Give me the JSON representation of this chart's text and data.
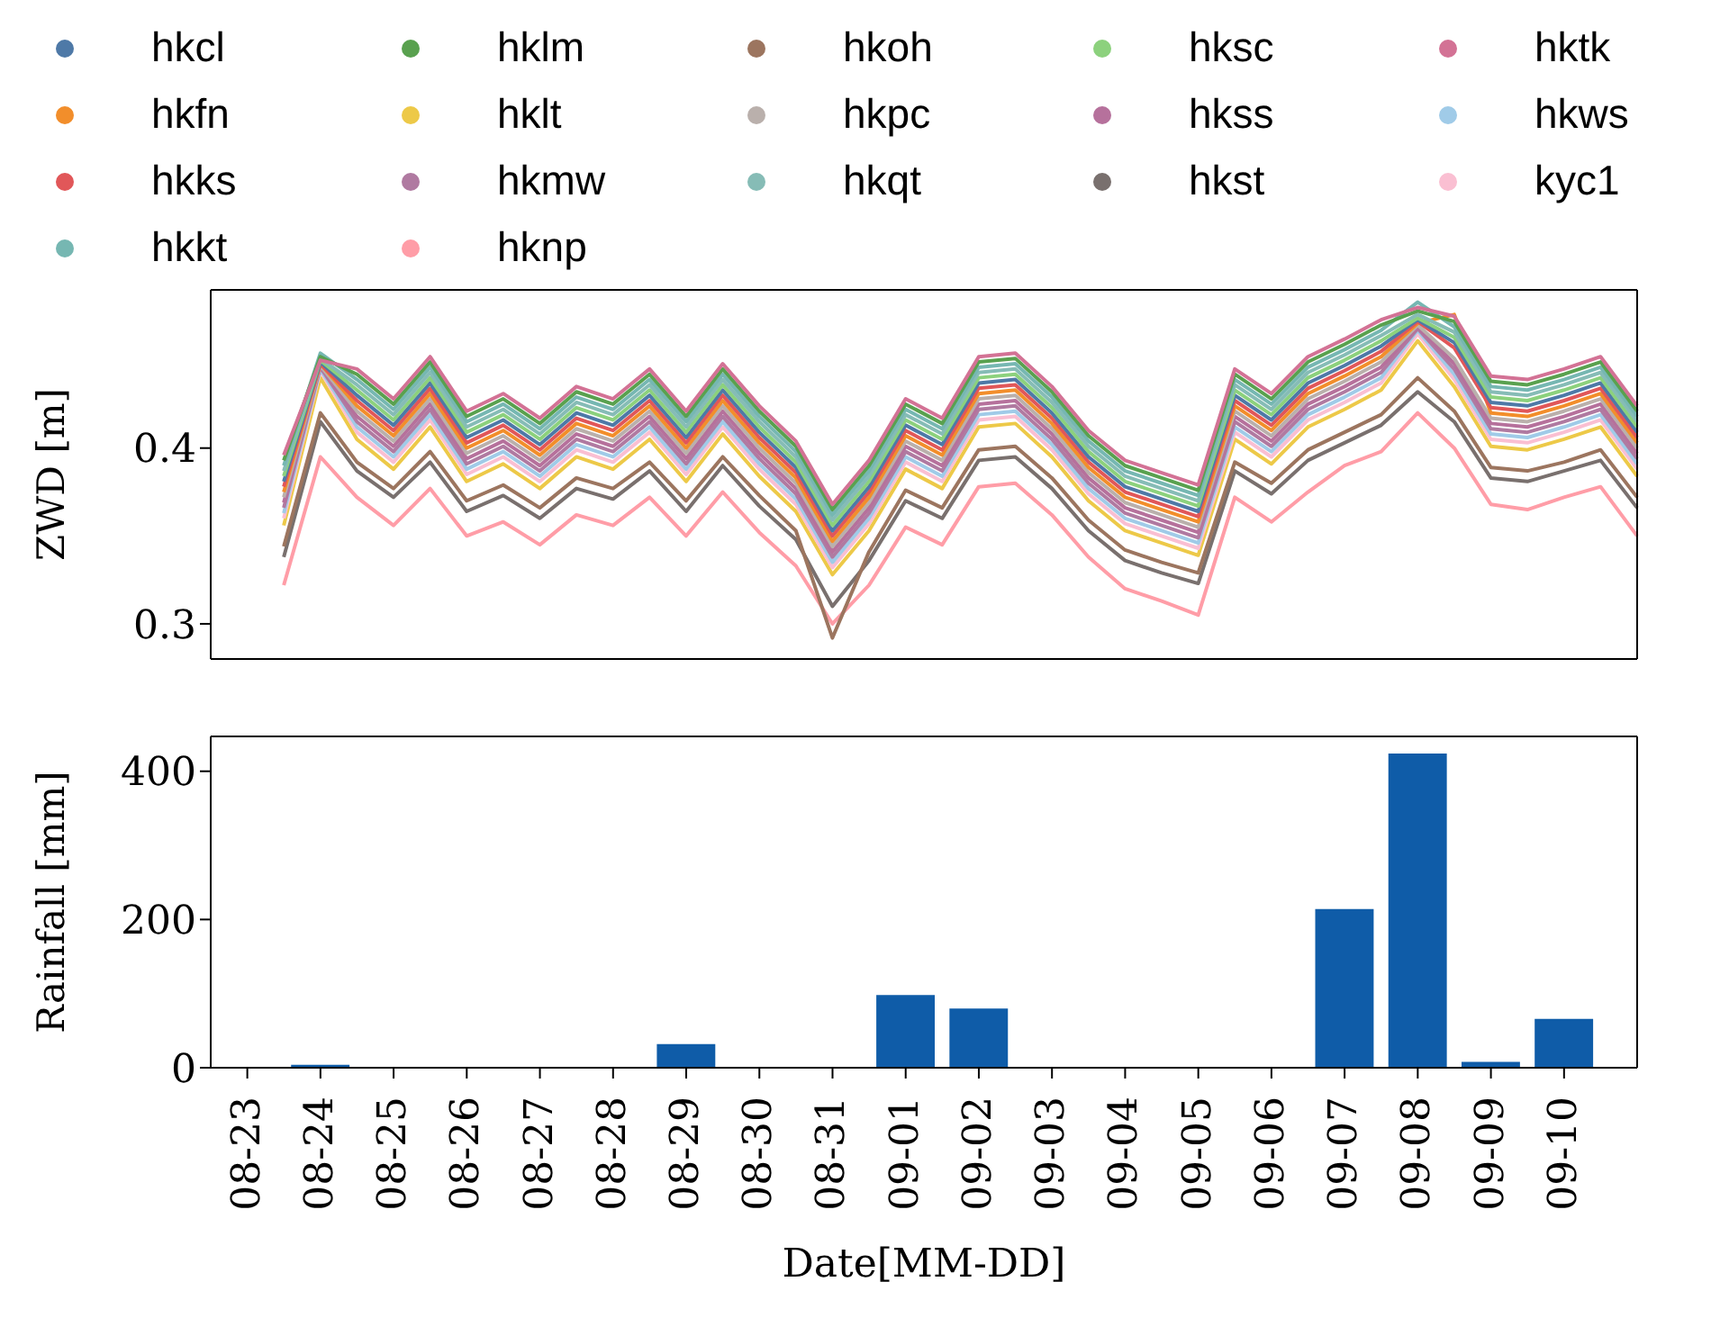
{
  "chart_data": [
    {
      "type": "line",
      "ylabel": "ZWD [m]",
      "legend": "top",
      "tick_labels": "y",
      "categories": [
        null,
        null,
        null,
        null,
        null,
        null,
        null,
        null,
        null,
        null,
        null,
        null,
        null,
        null,
        null,
        null,
        null,
        null,
        null,
        null,
        null,
        null,
        null,
        null,
        null,
        null,
        null,
        null,
        null,
        null,
        null,
        null,
        null,
        null,
        null,
        null,
        null,
        null
      ],
      "ylim": [
        0.28,
        0.49
      ],
      "yticks": [
        0.3,
        0.4
      ],
      "series": [
        {
          "name": "hkcl",
          "color": "#4e79a7",
          "values": [
            0.381,
            0.449,
            0.43,
            0.413,
            0.437,
            0.406,
            0.416,
            0.402,
            0.42,
            0.413,
            0.43,
            0.406,
            0.433,
            0.409,
            0.389,
            0.353,
            0.378,
            0.413,
            0.402,
            0.437,
            0.439,
            0.42,
            0.395,
            0.378,
            0.371,
            0.364,
            0.43,
            0.416,
            0.437,
            0.447,
            0.458,
            0.473,
            0.46,
            0.426,
            0.424,
            0.43,
            0.437,
            0.409
          ]
        },
        {
          "name": "hkfn",
          "color": "#f28e2b",
          "values": [
            0.375,
            0.448,
            0.424,
            0.407,
            0.431,
            0.4,
            0.41,
            0.396,
            0.414,
            0.407,
            0.424,
            0.4,
            0.427,
            0.403,
            0.383,
            0.347,
            0.372,
            0.407,
            0.396,
            0.431,
            0.433,
            0.414,
            0.389,
            0.372,
            0.365,
            0.358,
            0.424,
            0.41,
            0.431,
            0.441,
            0.452,
            0.471,
            0.476,
            0.42,
            0.418,
            0.424,
            0.431,
            0.403
          ]
        },
        {
          "name": "hkks",
          "color": "#e15759",
          "values": [
            0.378,
            0.448,
            0.427,
            0.41,
            0.434,
            0.403,
            0.413,
            0.399,
            0.417,
            0.41,
            0.427,
            0.403,
            0.43,
            0.406,
            0.386,
            0.35,
            0.375,
            0.41,
            0.399,
            0.434,
            0.436,
            0.417,
            0.392,
            0.375,
            0.368,
            0.361,
            0.427,
            0.413,
            0.434,
            0.444,
            0.455,
            0.472,
            0.457,
            0.423,
            0.421,
            0.427,
            0.434,
            0.406
          ]
        },
        {
          "name": "hkkt",
          "color": "#76b7b2",
          "values": [
            0.39,
            0.454,
            0.439,
            0.422,
            0.446,
            0.415,
            0.425,
            0.411,
            0.429,
            0.422,
            0.439,
            0.415,
            0.442,
            0.418,
            0.398,
            0.362,
            0.387,
            0.422,
            0.411,
            0.446,
            0.448,
            0.429,
            0.404,
            0.387,
            0.38,
            0.373,
            0.439,
            0.425,
            0.446,
            0.456,
            0.467,
            0.483,
            0.469,
            0.435,
            0.433,
            0.439,
            0.446,
            0.418
          ]
        },
        {
          "name": "hklm",
          "color": "#59a14f",
          "values": [
            0.393,
            0.452,
            0.442,
            0.425,
            0.449,
            0.418,
            0.428,
            0.414,
            0.432,
            0.425,
            0.442,
            0.418,
            0.445,
            0.421,
            0.401,
            0.365,
            0.39,
            0.425,
            0.414,
            0.449,
            0.451,
            0.432,
            0.407,
            0.39,
            0.383,
            0.376,
            0.442,
            0.428,
            0.449,
            0.459,
            0.47,
            0.478,
            0.472,
            0.438,
            0.436,
            0.442,
            0.449,
            0.421
          ]
        },
        {
          "name": "hklt",
          "color": "#edc948",
          "values": [
            0.356,
            0.44,
            0.405,
            0.388,
            0.412,
            0.381,
            0.391,
            0.377,
            0.395,
            0.388,
            0.405,
            0.381,
            0.408,
            0.384,
            0.364,
            0.328,
            0.353,
            0.388,
            0.377,
            0.412,
            0.414,
            0.395,
            0.37,
            0.353,
            0.346,
            0.339,
            0.405,
            0.391,
            0.412,
            0.422,
            0.433,
            0.461,
            0.435,
            0.401,
            0.399,
            0.405,
            0.412,
            0.384
          ]
        },
        {
          "name": "hkmw",
          "color": "#b07aa1",
          "values": [
            0.366,
            0.446,
            0.415,
            0.398,
            0.422,
            0.391,
            0.401,
            0.387,
            0.405,
            0.398,
            0.415,
            0.391,
            0.418,
            0.394,
            0.374,
            0.338,
            0.363,
            0.398,
            0.387,
            0.422,
            0.424,
            0.405,
            0.38,
            0.363,
            0.356,
            0.349,
            0.415,
            0.401,
            0.422,
            0.432,
            0.443,
            0.468,
            0.445,
            0.411,
            0.409,
            0.415,
            0.422,
            0.394
          ]
        },
        {
          "name": "hknp",
          "color": "#ff9da7",
          "values": [
            0.322,
            0.395,
            0.372,
            0.356,
            0.377,
            0.35,
            0.358,
            0.345,
            0.362,
            0.356,
            0.372,
            0.35,
            0.375,
            0.352,
            0.333,
            0.3,
            0.322,
            0.355,
            0.345,
            0.378,
            0.38,
            0.362,
            0.338,
            0.32,
            0.313,
            0.305,
            0.372,
            0.358,
            0.375,
            0.39,
            0.398,
            0.42,
            0.4,
            0.368,
            0.365,
            0.372,
            0.378,
            0.35
          ]
        },
        {
          "name": "hkoh",
          "color": "#9c755f",
          "values": [
            0.344,
            0.42,
            0.392,
            0.377,
            0.398,
            0.37,
            0.379,
            0.366,
            0.383,
            0.377,
            0.392,
            0.37,
            0.395,
            0.373,
            0.353,
            0.292,
            0.341,
            0.376,
            0.366,
            0.399,
            0.401,
            0.383,
            0.359,
            0.342,
            0.335,
            0.329,
            0.392,
            0.38,
            0.399,
            0.409,
            0.419,
            0.44,
            0.421,
            0.389,
            0.387,
            0.392,
            0.399,
            0.372
          ]
        },
        {
          "name": "hkpc",
          "color": "#bab0ac",
          "values": [
            0.372,
            0.447,
            0.421,
            0.404,
            0.428,
            0.397,
            0.407,
            0.393,
            0.411,
            0.404,
            0.421,
            0.397,
            0.424,
            0.4,
            0.38,
            0.344,
            0.369,
            0.404,
            0.393,
            0.428,
            0.43,
            0.411,
            0.386,
            0.369,
            0.362,
            0.355,
            0.421,
            0.407,
            0.428,
            0.438,
            0.449,
            0.47,
            0.451,
            0.417,
            0.415,
            0.421,
            0.428,
            0.4
          ]
        },
        {
          "name": "hkqt",
          "color": "#86bcb6",
          "values": [
            0.387,
            0.451,
            0.436,
            0.419,
            0.443,
            0.412,
            0.422,
            0.408,
            0.426,
            0.419,
            0.436,
            0.412,
            0.439,
            0.415,
            0.395,
            0.359,
            0.384,
            0.419,
            0.408,
            0.443,
            0.445,
            0.426,
            0.401,
            0.384,
            0.377,
            0.37,
            0.436,
            0.422,
            0.443,
            0.453,
            0.464,
            0.476,
            0.466,
            0.432,
            0.43,
            0.436,
            0.443,
            0.415
          ]
        },
        {
          "name": "hksc",
          "color": "#8cd17d",
          "values": [
            0.384,
            0.45,
            0.433,
            0.416,
            0.44,
            0.409,
            0.419,
            0.405,
            0.423,
            0.416,
            0.433,
            0.409,
            0.436,
            0.412,
            0.392,
            0.356,
            0.381,
            0.416,
            0.405,
            0.44,
            0.442,
            0.423,
            0.398,
            0.381,
            0.374,
            0.367,
            0.433,
            0.419,
            0.44,
            0.45,
            0.461,
            0.474,
            0.463,
            0.429,
            0.427,
            0.433,
            0.44,
            0.412
          ]
        },
        {
          "name": "hkss",
          "color": "#b6719c",
          "values": [
            0.369,
            0.447,
            0.418,
            0.401,
            0.425,
            0.394,
            0.404,
            0.39,
            0.408,
            0.401,
            0.418,
            0.394,
            0.421,
            0.397,
            0.377,
            0.341,
            0.366,
            0.401,
            0.39,
            0.425,
            0.427,
            0.408,
            0.383,
            0.366,
            0.359,
            0.352,
            0.418,
            0.404,
            0.425,
            0.435,
            0.446,
            0.469,
            0.448,
            0.414,
            0.412,
            0.418,
            0.425,
            0.397
          ]
        },
        {
          "name": "hkst",
          "color": "#79706e",
          "values": [
            0.338,
            0.415,
            0.387,
            0.372,
            0.392,
            0.364,
            0.373,
            0.36,
            0.377,
            0.371,
            0.387,
            0.364,
            0.39,
            0.367,
            0.348,
            0.31,
            0.336,
            0.37,
            0.36,
            0.393,
            0.395,
            0.377,
            0.353,
            0.336,
            0.329,
            0.323,
            0.387,
            0.374,
            0.393,
            0.403,
            0.413,
            0.432,
            0.415,
            0.383,
            0.381,
            0.387,
            0.393,
            0.366
          ]
        },
        {
          "name": "hktk",
          "color": "#d37295",
          "values": [
            0.396,
            0.45,
            0.445,
            0.428,
            0.452,
            0.421,
            0.431,
            0.417,
            0.435,
            0.428,
            0.445,
            0.421,
            0.448,
            0.424,
            0.404,
            0.368,
            0.393,
            0.428,
            0.417,
            0.452,
            0.454,
            0.435,
            0.41,
            0.393,
            0.386,
            0.379,
            0.445,
            0.431,
            0.452,
            0.462,
            0.473,
            0.48,
            0.475,
            0.441,
            0.439,
            0.445,
            0.452,
            0.424
          ]
        },
        {
          "name": "hkws",
          "color": "#a0cbe8",
          "values": [
            0.363,
            0.445,
            0.412,
            0.395,
            0.419,
            0.388,
            0.398,
            0.384,
            0.402,
            0.395,
            0.412,
            0.388,
            0.415,
            0.391,
            0.371,
            0.335,
            0.36,
            0.395,
            0.384,
            0.419,
            0.421,
            0.402,
            0.377,
            0.36,
            0.353,
            0.346,
            0.412,
            0.398,
            0.419,
            0.429,
            0.44,
            0.467,
            0.442,
            0.408,
            0.406,
            0.412,
            0.419,
            0.391
          ]
        },
        {
          "name": "kyc1",
          "color": "#fabfd2",
          "values": [
            0.36,
            0.444,
            0.409,
            0.392,
            0.416,
            0.385,
            0.395,
            0.381,
            0.399,
            0.392,
            0.409,
            0.385,
            0.412,
            0.388,
            0.368,
            0.332,
            0.357,
            0.392,
            0.381,
            0.416,
            0.418,
            0.399,
            0.374,
            0.357,
            0.35,
            0.343,
            0.409,
            0.395,
            0.416,
            0.426,
            0.437,
            0.465,
            0.439,
            0.405,
            0.403,
            0.409,
            0.416,
            0.388
          ]
        }
      ]
    },
    {
      "type": "bar",
      "xlabel": "Date[MM-DD]",
      "ylabel": "Rainfall [mm]",
      "color": "#0f5ca8",
      "categories": [
        "08-23",
        "08-24",
        "08-25",
        "08-26",
        "08-27",
        "08-28",
        "08-29",
        "08-30",
        "08-31",
        "09-01",
        "09-02",
        "09-03",
        "09-04",
        "09-05",
        "09-06",
        "09-07",
        "09-08",
        "09-09",
        "09-10"
      ],
      "ylim": [
        0,
        447
      ],
      "yticks": [
        0,
        200,
        400
      ],
      "values": [
        0,
        4,
        0,
        0,
        0,
        0,
        32,
        0,
        0,
        98,
        80,
        0,
        0,
        0,
        0,
        214,
        424,
        8,
        66
      ]
    }
  ]
}
